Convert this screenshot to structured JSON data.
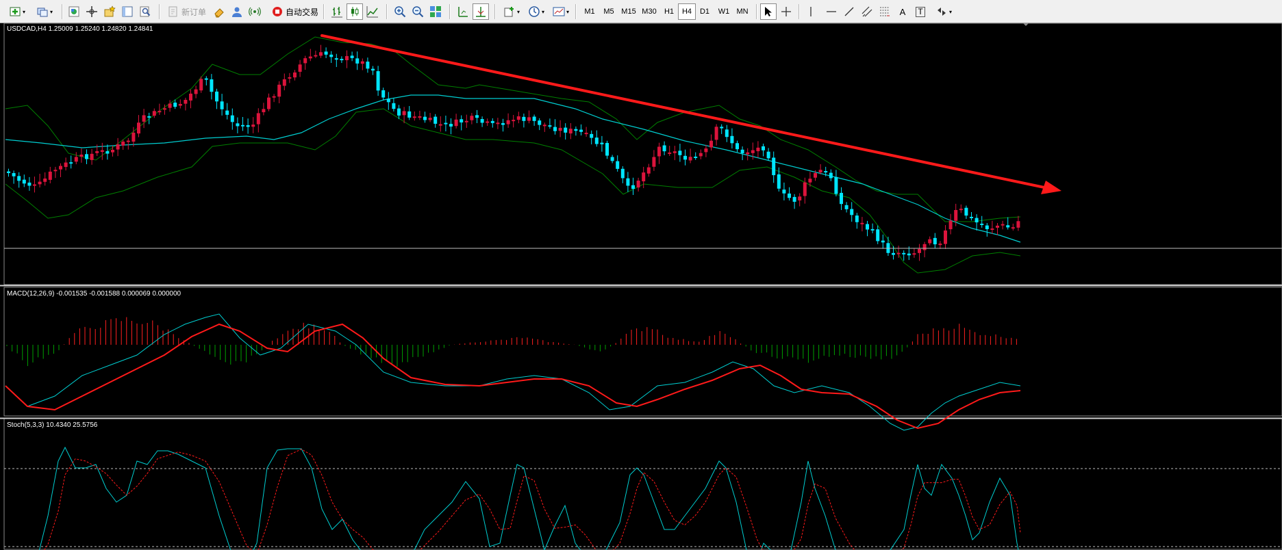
{
  "toolbar": {
    "new_order_label": "新订单",
    "auto_trade_label": "自动交易",
    "timeframes": [
      "M1",
      "M5",
      "M15",
      "M30",
      "H1",
      "H4",
      "D1",
      "W1",
      "MN"
    ],
    "active_timeframe": "H4",
    "text_tool_label": "A",
    "text_label_tool_label": "T"
  },
  "main_chart": {
    "label": "USDCAD,H4  1.25009 1.25240 1.24820 1.24841",
    "bull_color": "#dc143c",
    "bear_color": "#00e5ff",
    "bands_color": "#008000",
    "ma_color": "#00ced1",
    "trend_arrow_color": "#ff1a1a",
    "price_line_color": "#c0c0c0"
  },
  "macd": {
    "label": "MACD(12,26,9) -0.001535 -0.001588 0.000069 0.000000",
    "macd_color": "#00ced1",
    "signal_color": "#ff1a1a",
    "hist_pos_color": "#ff2020",
    "hist_neg_color": "#00a000"
  },
  "stoch": {
    "label": "Stoch(5,3,3) 10.4340 25.5756",
    "main_color": "#00ced1",
    "signal_color": "#ff1a1a",
    "levels": [
      80,
      20
    ]
  },
  "chart_data": [
    {
      "type": "candlestick",
      "title": "USDCAD,H4",
      "ohlc_printed": [
        1.25009,
        1.2524,
        1.2482,
        1.24841
      ],
      "series": [
        {
          "name": "USDCAD H4 trend (approx. shape, falling)",
          "values": [
            0.35,
            0.36,
            0.3,
            0.4,
            0.55,
            0.72,
            0.62,
            0.55,
            0.8,
            0.88,
            0.78,
            0.7,
            0.72,
            0.68,
            0.58,
            0.6,
            0.55,
            0.42,
            0.5,
            0.48,
            0.38,
            0.48,
            0.32,
            0.18,
            0.22,
            0.2,
            0.05,
            0.07
          ]
        }
      ]
    },
    {
      "type": "line",
      "title": "MACD(12,26,9)",
      "series": [
        {
          "name": "MACD",
          "values": [
            -0.001535
          ]
        },
        {
          "name": "Signal",
          "values": [
            -0.001588
          ]
        }
      ]
    },
    {
      "type": "line",
      "title": "Stoch(5,3,3)",
      "series": [
        {
          "name": "%K",
          "values": [
            10.434
          ]
        },
        {
          "name": "%D",
          "values": [
            25.5756
          ]
        }
      ],
      "ylim": [
        0,
        100
      ]
    }
  ]
}
